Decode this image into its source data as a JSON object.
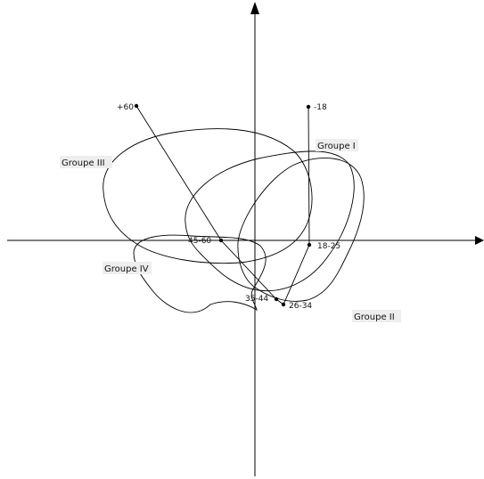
{
  "groups": [
    {
      "id": "g1",
      "label": "Groupe I"
    },
    {
      "id": "g2",
      "label": "Groupe II"
    },
    {
      "id": "g3",
      "label": "Groupe III"
    },
    {
      "id": "g4",
      "label": "Groupe IV"
    }
  ],
  "points": [
    {
      "id": "p1",
      "label": "-18"
    },
    {
      "id": "p2",
      "label": "18-25"
    },
    {
      "id": "p3",
      "label": "26-34"
    },
    {
      "id": "p4",
      "label": "35-44"
    },
    {
      "id": "p5",
      "label": "45-60"
    },
    {
      "id": "p6",
      "label": "+60"
    }
  ]
}
